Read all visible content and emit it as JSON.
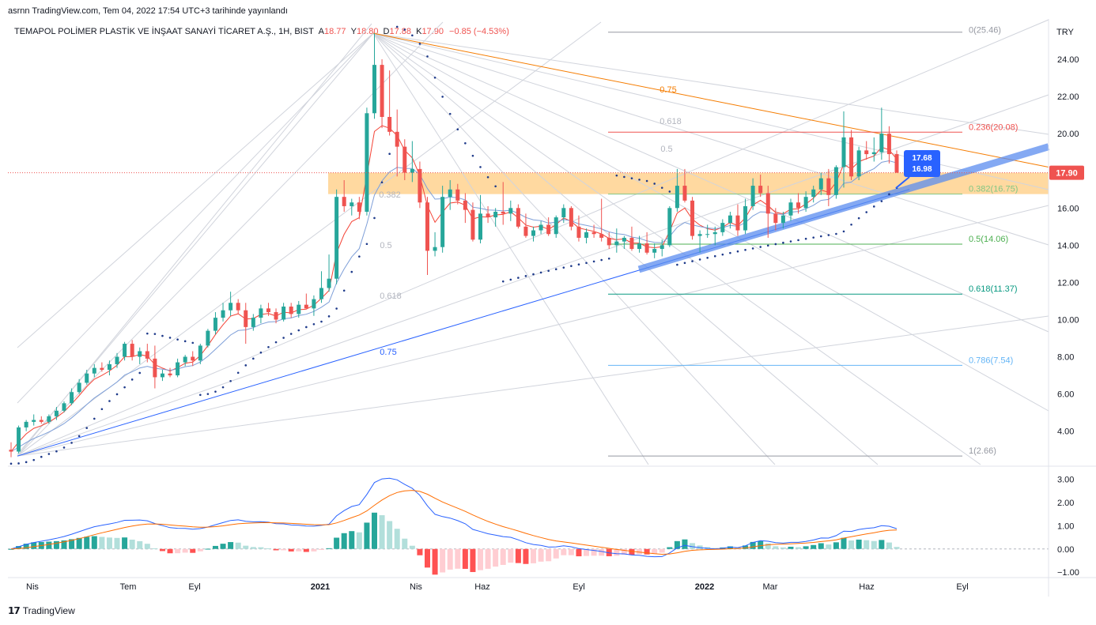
{
  "caption": "asrnn TradingView.com, Tem 04, 2022 17:54 UTC+3 tarihinde yayınlandı",
  "symbol_legend": {
    "name": "TEMAPOL POLİMER PLASTİK VE İNŞAAT SANAYİ TİCARET A.Ş., 1H, BIST",
    "o_label": "A",
    "o_value": "18.77",
    "h_label": "Y",
    "h_value": "18.80",
    "l_label": "D",
    "l_value": "17.88",
    "c_label": "K",
    "c_value": "17.90",
    "change": "−0.85 (−4.53%)"
  },
  "brand": "TradingView",
  "colors": {
    "up": "#26a69a",
    "down": "#ef5350",
    "fib_line": "#f57c00",
    "trend": "#2962ff",
    "zone": "#ffcc80"
  },
  "chart_data": [
    {
      "type": "candlestick",
      "currency": "TRY",
      "ylim": [
        2.2,
        26.0
      ],
      "y_ticks": [
        "24.00",
        "22.00",
        "20.00",
        "18.00",
        "16.00",
        "14.00",
        "12.00",
        "10.00",
        "8.00",
        "6.00",
        "4.00"
      ],
      "x_ticks": [
        "Nis",
        "Tem",
        "Eyl",
        "2021",
        "Nis",
        "Haz",
        "Eyl",
        "2022",
        "Mar",
        "Haz",
        "Eyl"
      ],
      "last_price": "17.90",
      "price_labels": [
        "17.68",
        "16.98"
      ],
      "fib_levels": [
        {
          "label": "0(25.46)",
          "value": 25.46,
          "color": "#9598a1"
        },
        {
          "label": "0.236(20.08)",
          "value": 20.08,
          "color": "#ef5350"
        },
        {
          "label": "0.382(16.75)",
          "value": 16.75,
          "color": "#81c784"
        },
        {
          "label": "0.5(14.06)",
          "value": 14.06,
          "color": "#4caf50"
        },
        {
          "label": "0.618(11.37)",
          "value": 11.37,
          "color": "#089981"
        },
        {
          "label": "0.786(7.54)",
          "value": 7.54,
          "color": "#64b5f6"
        },
        {
          "label": "1(2.66)",
          "value": 2.66,
          "color": "#9598a1"
        }
      ],
      "fan_labels": [
        {
          "text": "0.75",
          "x": 845,
          "y": 117,
          "color": "#f57c00"
        },
        {
          "text": "0.618",
          "x": 848,
          "y": 157,
          "color": "#b2b5be"
        },
        {
          "text": "0.5",
          "x": 843,
          "y": 192,
          "color": "#b2b5be"
        },
        {
          "text": "0.382",
          "x": 493,
          "y": 250,
          "color": "#b2b5be"
        },
        {
          "text": "0.5",
          "x": 488,
          "y": 314,
          "color": "#b2b5be"
        },
        {
          "text": "0.618",
          "x": 494,
          "y": 378,
          "color": "#b2b5be"
        },
        {
          "text": "0.75",
          "x": 491,
          "y": 449,
          "color": "#2962ff"
        }
      ],
      "candles": [
        [
          3.0,
          3.4,
          2.6,
          2.9
        ],
        [
          2.9,
          4.3,
          2.8,
          4.2
        ],
        [
          4.2,
          4.6,
          4.0,
          4.5
        ],
        [
          4.5,
          4.9,
          4.3,
          4.6
        ],
        [
          4.6,
          4.8,
          4.4,
          4.5
        ],
        [
          4.5,
          4.9,
          4.4,
          4.8
        ],
        [
          4.8,
          5.3,
          4.6,
          5.1
        ],
        [
          5.1,
          5.6,
          5.0,
          5.5
        ],
        [
          5.5,
          6.3,
          5.4,
          6.1
        ],
        [
          6.1,
          6.8,
          6.0,
          6.6
        ],
        [
          6.6,
          7.3,
          6.5,
          7.1
        ],
        [
          7.1,
          7.6,
          6.9,
          7.4
        ],
        [
          7.4,
          7.7,
          7.2,
          7.3
        ],
        [
          7.3,
          7.8,
          7.0,
          7.6
        ],
        [
          7.6,
          8.2,
          7.4,
          8.0
        ],
        [
          8.0,
          8.8,
          7.8,
          8.7
        ],
        [
          8.7,
          8.9,
          7.8,
          8.0
        ],
        [
          8.0,
          8.5,
          7.6,
          8.3
        ],
        [
          8.3,
          8.7,
          7.7,
          7.9
        ],
        [
          7.9,
          8.6,
          6.3,
          6.9
        ],
        [
          6.9,
          7.3,
          6.7,
          7.1
        ],
        [
          7.1,
          7.4,
          6.9,
          7.0
        ],
        [
          7.0,
          7.9,
          6.9,
          7.7
        ],
        [
          7.7,
          8.1,
          7.5,
          8.0
        ],
        [
          8.0,
          8.3,
          7.5,
          7.8
        ],
        [
          7.8,
          8.7,
          7.6,
          8.6
        ],
        [
          8.6,
          9.5,
          8.5,
          9.4
        ],
        [
          9.4,
          10.4,
          9.2,
          10.1
        ],
        [
          10.1,
          10.9,
          9.9,
          10.5
        ],
        [
          10.5,
          11.5,
          10.2,
          10.9
        ],
        [
          10.9,
          11.1,
          10.3,
          10.5
        ],
        [
          10.5,
          10.9,
          8.7,
          9.6
        ],
        [
          9.6,
          10.3,
          9.4,
          10.1
        ],
        [
          10.1,
          10.8,
          9.8,
          10.6
        ],
        [
          10.6,
          10.9,
          10.2,
          10.4
        ],
        [
          10.4,
          10.6,
          9.8,
          10.0
        ],
        [
          10.0,
          10.9,
          9.9,
          10.7
        ],
        [
          10.7,
          10.9,
          10.1,
          10.3
        ],
        [
          10.3,
          11.0,
          10.1,
          10.8
        ],
        [
          10.8,
          11.4,
          10.6,
          10.6
        ],
        [
          10.6,
          11.3,
          10.2,
          11.1
        ],
        [
          11.1,
          12.6,
          10.9,
          11.7
        ],
        [
          11.7,
          13.5,
          11.5,
          12.2
        ],
        [
          12.2,
          17.0,
          11.9,
          16.6
        ],
        [
          16.6,
          17.5,
          15.8,
          16.1
        ],
        [
          16.1,
          16.5,
          15.6,
          16.3
        ],
        [
          16.3,
          16.6,
          15.4,
          15.8
        ],
        [
          15.8,
          21.4,
          15.6,
          21.1
        ],
        [
          21.1,
          25.4,
          20.8,
          23.7
        ],
        [
          23.7,
          24.0,
          20.3,
          20.9
        ],
        [
          20.9,
          23.4,
          19.9,
          20.1
        ],
        [
          20.1,
          21.3,
          17.7,
          19.3
        ],
        [
          19.3,
          19.7,
          17.5,
          17.9
        ],
        [
          17.9,
          19.6,
          17.4,
          18.1
        ],
        [
          18.1,
          18.5,
          16.0,
          16.3
        ],
        [
          16.3,
          16.6,
          12.4,
          13.7
        ],
        [
          13.7,
          14.7,
          13.4,
          13.9
        ],
        [
          13.9,
          17.2,
          13.6,
          16.6
        ],
        [
          16.6,
          17.5,
          15.9,
          17.0
        ],
        [
          17.0,
          17.3,
          16.2,
          16.4
        ],
        [
          16.4,
          16.8,
          15.2,
          15.9
        ],
        [
          15.9,
          16.3,
          14.2,
          14.3
        ],
        [
          14.3,
          16.7,
          14.1,
          15.7
        ],
        [
          15.7,
          16.1,
          15.2,
          15.5
        ],
        [
          15.5,
          16.0,
          15.0,
          15.8
        ],
        [
          15.8,
          17.4,
          15.1,
          15.7
        ],
        [
          15.7,
          16.4,
          15.3,
          16.0
        ],
        [
          16.0,
          16.2,
          14.9,
          15.0
        ],
        [
          15.0,
          15.7,
          14.4,
          14.5
        ],
        [
          14.5,
          15.0,
          14.2,
          14.8
        ],
        [
          14.8,
          15.3,
          14.6,
          15.1
        ],
        [
          15.1,
          15.5,
          14.5,
          14.6
        ],
        [
          14.6,
          15.6,
          14.4,
          15.5
        ],
        [
          15.5,
          16.2,
          15.2,
          16.0
        ],
        [
          16.0,
          16.1,
          14.8,
          15.0
        ],
        [
          15.0,
          15.6,
          14.2,
          14.4
        ],
        [
          14.4,
          14.9,
          14.1,
          14.7
        ],
        [
          14.7,
          15.1,
          14.4,
          14.6
        ],
        [
          14.6,
          16.5,
          14.2,
          14.4
        ],
        [
          14.4,
          14.7,
          13.8,
          14.0
        ],
        [
          14.0,
          14.9,
          13.6,
          14.2
        ],
        [
          14.2,
          14.5,
          13.8,
          14.4
        ],
        [
          14.4,
          15.0,
          13.7,
          13.8
        ],
        [
          13.8,
          14.5,
          13.6,
          14.1
        ],
        [
          14.1,
          14.7,
          13.5,
          13.6
        ],
        [
          13.6,
          14.1,
          13.3,
          13.8
        ],
        [
          13.8,
          14.3,
          13.4,
          14.0
        ],
        [
          14.0,
          16.1,
          13.9,
          16.0
        ],
        [
          16.0,
          18.1,
          15.8,
          17.2
        ],
        [
          17.2,
          18.1,
          16.3,
          16.4
        ],
        [
          16.4,
          16.6,
          14.3,
          14.5
        ],
        [
          14.5,
          14.8,
          13.6,
          14.6
        ],
        [
          14.6,
          15.1,
          14.4,
          14.6
        ],
        [
          14.6,
          15.0,
          14.0,
          14.7
        ],
        [
          14.7,
          15.4,
          14.5,
          15.2
        ],
        [
          15.2,
          15.8,
          14.9,
          15.6
        ],
        [
          15.6,
          16.2,
          14.5,
          14.8
        ],
        [
          14.8,
          16.5,
          14.6,
          16.1
        ],
        [
          16.1,
          17.6,
          15.9,
          17.2
        ],
        [
          17.2,
          17.8,
          16.6,
          16.8
        ],
        [
          16.8,
          17.2,
          14.4,
          15.7
        ],
        [
          15.7,
          16.0,
          14.8,
          15.2
        ],
        [
          15.2,
          15.8,
          14.9,
          15.6
        ],
        [
          15.6,
          16.5,
          15.3,
          16.3
        ],
        [
          16.3,
          16.8,
          15.7,
          16.0
        ],
        [
          16.0,
          16.9,
          15.8,
          16.6
        ],
        [
          16.6,
          17.2,
          16.3,
          17.0
        ],
        [
          17.0,
          17.9,
          16.7,
          17.6
        ],
        [
          17.6,
          18.1,
          16.1,
          16.7
        ],
        [
          16.7,
          18.3,
          16.5,
          18.2
        ],
        [
          18.2,
          21.2,
          17.1,
          19.8
        ],
        [
          19.8,
          20.2,
          17.5,
          17.7
        ],
        [
          17.7,
          19.3,
          17.5,
          19.1
        ],
        [
          19.1,
          19.6,
          18.6,
          18.9
        ],
        [
          18.9,
          19.8,
          18.5,
          19.0
        ],
        [
          19.0,
          21.4,
          18.6,
          20.0
        ],
        [
          20.0,
          20.4,
          18.4,
          18.9
        ],
        [
          18.9,
          19.1,
          17.9,
          17.9
        ]
      ]
    },
    {
      "type": "macd",
      "ylim": [
        -1.2,
        3.5
      ],
      "y_ticks": [
        "3.00",
        "2.00",
        "1.00",
        "0.00",
        "−1.00"
      ]
    }
  ]
}
